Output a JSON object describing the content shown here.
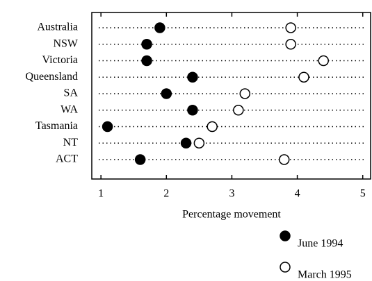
{
  "chart_data": {
    "type": "dot",
    "x_label": "Percentage movement",
    "categories": [
      "Australia",
      "NSW",
      "Victoria",
      "Queensland",
      "SA",
      "WA",
      "Tasmania",
      "NT",
      "ACT"
    ],
    "series": [
      {
        "name": "June 1994",
        "color": "#000000",
        "filled": true,
        "values": [
          1.9,
          1.7,
          1.7,
          2.4,
          2.0,
          2.4,
          1.1,
          2.3,
          1.6
        ]
      },
      {
        "name": "March 1995",
        "color": "#000000",
        "filled": false,
        "values": [
          3.9,
          3.9,
          4.4,
          4.1,
          3.2,
          3.1,
          2.7,
          2.5,
          3.8
        ]
      }
    ],
    "xlim": [
      0.86,
      5.12
    ],
    "xticks": [
      1,
      2,
      3,
      4,
      5
    ]
  }
}
